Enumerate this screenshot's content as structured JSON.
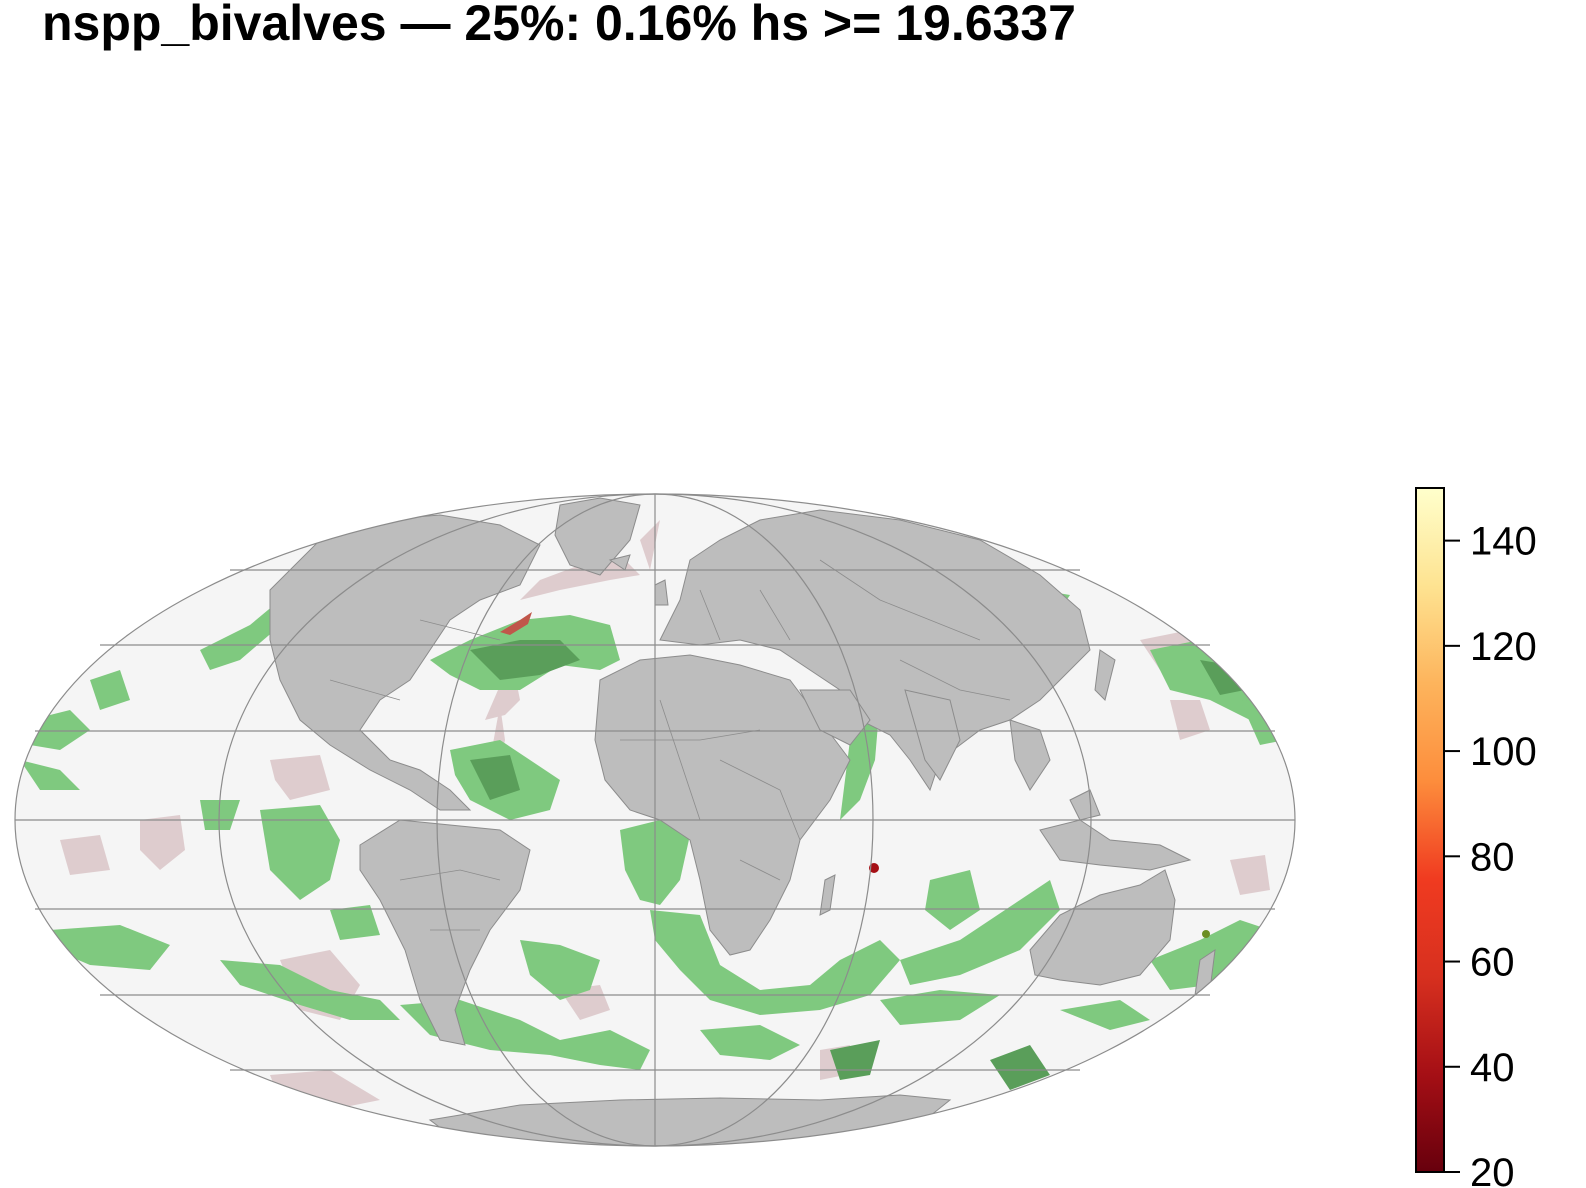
{
  "title": "nspp_bivalves — 25%: 0.16% hs >= 19.6337",
  "legend": {
    "ticks": [
      {
        "value": 20,
        "label": "20"
      },
      {
        "value": 40,
        "label": "40"
      },
      {
        "value": 60,
        "label": "60"
      },
      {
        "value": 80,
        "label": "80"
      },
      {
        "value": 100,
        "label": "100"
      },
      {
        "value": 120,
        "label": "120"
      },
      {
        "value": 140,
        "label": "140"
      }
    ],
    "range": [
      20,
      150
    ],
    "gradient_colors": [
      "#67000d",
      "#a50f15",
      "#d7301f",
      "#f03b20",
      "#fd8d3c",
      "#fdb45c",
      "#fee391",
      "#ffffcc"
    ]
  },
  "colors": {
    "land": "#bdbdbd",
    "ocean_background": "#f5f5f5",
    "habitat_green": "#7fc97f",
    "habitat_dark_green": "#5a9e5a",
    "habitat_pink": "#dcc8ca",
    "graticule": "#8c8c8c"
  }
}
